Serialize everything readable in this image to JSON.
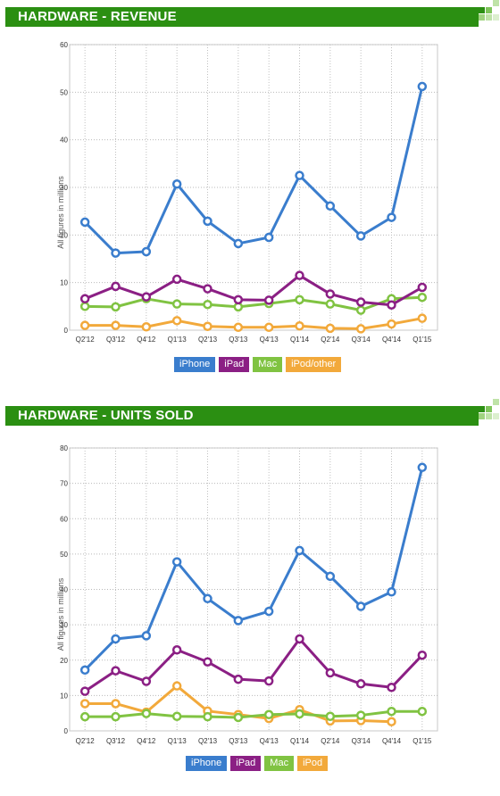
{
  "panels": [
    {
      "title": "HARDWARE - REVENUE",
      "header_color": "#2b8f12"
    },
    {
      "title": "HARDWARE - UNITS SOLD",
      "header_color": "#2b8f12"
    }
  ],
  "chart_data": [
    {
      "type": "line",
      "title": "HARDWARE - REVENUE",
      "ylabel": "All figures in millions",
      "ylim": [
        0,
        60
      ],
      "yticks": [
        0,
        10,
        20,
        30,
        40,
        50,
        60
      ],
      "grid": true,
      "legend_position": "bottom",
      "categories": [
        "Q2'12",
        "Q3'12",
        "Q4'12",
        "Q1'13",
        "Q2'13",
        "Q3'13",
        "Q4'13",
        "Q1'14",
        "Q2'14",
        "Q3'14",
        "Q4'14",
        "Q1'15"
      ],
      "series": [
        {
          "name": "iPhone",
          "color": "#3a7dcd",
          "values": [
            22.7,
            16.2,
            16.5,
            30.7,
            22.9,
            18.2,
            19.5,
            32.5,
            26.1,
            19.8,
            23.7,
            51.2
          ]
        },
        {
          "name": "iPad",
          "color": "#8b1f84",
          "values": [
            6.6,
            9.2,
            7.0,
            10.7,
            8.7,
            6.4,
            6.3,
            11.5,
            7.6,
            5.9,
            5.3,
            9.0
          ]
        },
        {
          "name": "Mac",
          "color": "#80c342",
          "values": [
            5.0,
            4.9,
            6.6,
            5.5,
            5.4,
            4.9,
            5.6,
            6.4,
            5.5,
            4.2,
            6.6,
            6.9
          ]
        },
        {
          "name": "iPod/other",
          "color": "#f2a93b",
          "values": [
            1.0,
            1.0,
            0.7,
            2.0,
            0.8,
            0.6,
            0.6,
            0.9,
            0.4,
            0.3,
            1.3,
            2.5
          ]
        }
      ]
    },
    {
      "type": "line",
      "title": "HARDWARE - UNITS SOLD",
      "ylabel": "All figures in millions",
      "ylim": [
        0,
        80
      ],
      "yticks": [
        0,
        10,
        20,
        30,
        40,
        50,
        60,
        70,
        80
      ],
      "grid": true,
      "legend_position": "bottom",
      "categories": [
        "Q2'12",
        "Q3'12",
        "Q4'12",
        "Q1'13",
        "Q2'13",
        "Q3'13",
        "Q4'13",
        "Q1'14",
        "Q2'14",
        "Q3'14",
        "Q4'14",
        "Q1'15"
      ],
      "series": [
        {
          "name": "iPhone",
          "color": "#3a7dcd",
          "values": [
            17.2,
            26.0,
            26.9,
            47.8,
            37.4,
            31.2,
            33.8,
            51.0,
            43.7,
            35.2,
            39.3,
            74.5
          ]
        },
        {
          "name": "iPad",
          "color": "#8b1f84",
          "values": [
            11.2,
            17.0,
            14.0,
            22.9,
            19.5,
            14.6,
            14.1,
            26.0,
            16.4,
            13.3,
            12.3,
            21.4
          ]
        },
        {
          "name": "Mac",
          "color": "#80c342",
          "values": [
            4.0,
            4.0,
            4.9,
            4.1,
            4.0,
            3.8,
            4.6,
            4.8,
            4.1,
            4.4,
            5.5,
            5.5
          ]
        },
        {
          "name": "iPod",
          "color": "#f2a93b",
          "values": [
            7.7,
            7.7,
            5.3,
            12.7,
            5.6,
            4.6,
            3.5,
            6.0,
            2.8,
            2.9,
            2.6,
            null
          ]
        }
      ]
    }
  ]
}
